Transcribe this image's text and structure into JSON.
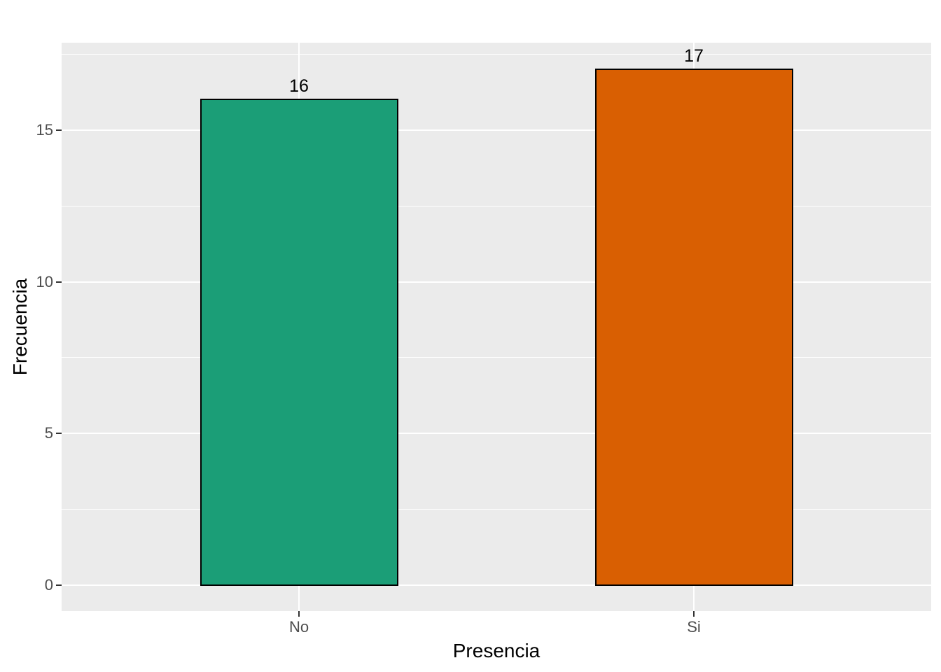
{
  "chart_data": {
    "type": "bar",
    "title": "",
    "xlabel": "Presencia",
    "ylabel": "Frecuencia",
    "categories": [
      "No",
      "Si"
    ],
    "values": [
      16,
      17
    ],
    "bar_labels": [
      "16",
      "17"
    ],
    "bar_colors": [
      "#1B9E77",
      "#D95F02"
    ],
    "bar_border_color": "#000000",
    "y_ticks": [
      0,
      5,
      10,
      15
    ],
    "y_minor_ticks": [
      2.5,
      7.5,
      12.5,
      17.5
    ],
    "ylim": [
      -0.85,
      17.85
    ],
    "grid": "on",
    "legend_position": "none",
    "panel_background": "#EBEBEB",
    "grid_color": "#FFFFFF",
    "tick_label_color": "#4D4D4D",
    "axis_title_color": "#000000"
  }
}
